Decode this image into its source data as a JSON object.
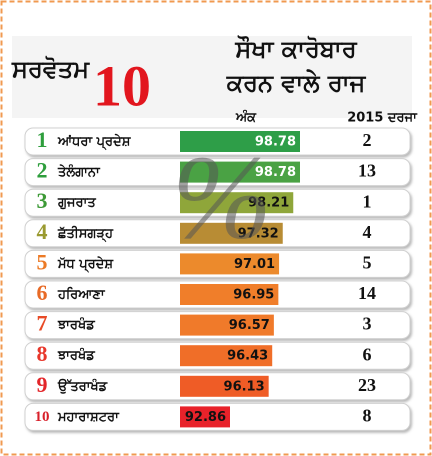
{
  "chart_data": {
    "type": "bar",
    "title_left": "ਸਰਵੋਤਮ",
    "title_number": "10",
    "title_line1": "ਸੌਖਾ ਕਾਰੋਬਾਰ",
    "title_line2": "ਕਰਨ ਵਾਲੇ ਰਾਜ",
    "value_header": "ਅੰਕ",
    "rank_header": "2015 ਦਰਜਾ",
    "watermark": "%",
    "ranks": [
      1,
      2,
      3,
      4,
      5,
      6,
      7,
      8,
      9,
      10
    ],
    "categories": [
      "ਆਂਧਰਾ ਪ੍ਰਦੇਸ਼",
      "ਤੇਲੰਗਾਨਾ",
      "ਗੁਜਰਾਤ",
      "ਛੱਤੀਸਗੜ੍ਹ",
      "ਮੱਧ ਪ੍ਰਦੇਸ਼",
      "ਹਰਿਆਣਾ",
      "ਝਾਰਖੰਡ",
      "ਝਾਰਖੰਡ",
      "ਉੱਤਰਾਖੰਡ",
      "ਮਹਾਰਾਸ਼ਟਰਾ"
    ],
    "values": [
      98.78,
      98.78,
      98.21,
      97.32,
      97.01,
      96.95,
      96.57,
      96.43,
      96.13,
      92.86
    ],
    "prev_ranks": [
      2,
      13,
      1,
      4,
      5,
      14,
      3,
      6,
      23,
      8
    ],
    "colors": [
      "#2e9e48",
      "#4aa244",
      "#8fa63a",
      "#b88c34",
      "#ec8a2c",
      "#f07e2a",
      "#f07a2a",
      "#f06e28",
      "#ef5c26",
      "#e8222a"
    ],
    "rank_colors": [
      "#2e9e3c",
      "#2e9e3c",
      "#3d9a36",
      "#9a9a30",
      "#ec7a26",
      "#e86a26",
      "#e84a26",
      "#e8362a",
      "#e3262a",
      "#d8202a"
    ]
  }
}
